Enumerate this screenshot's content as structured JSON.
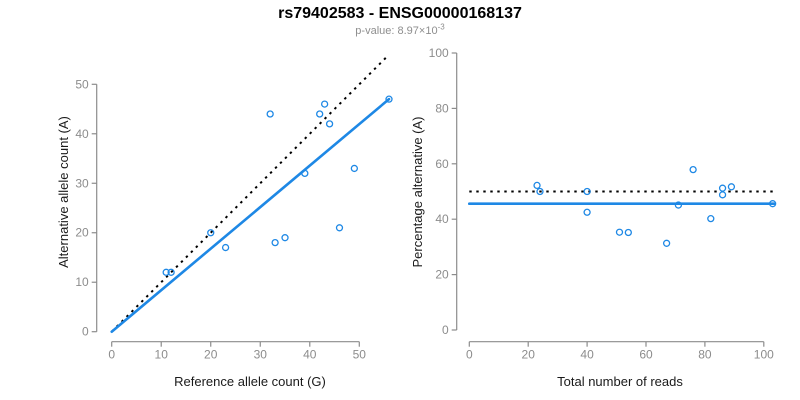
{
  "header": {
    "title": "rs79402583 - ENSG00000168137",
    "subtitle_main": "p-value: 8.97×10",
    "subtitle_exponent": "-3"
  },
  "colors": {
    "accent_blue": "#1E88E5",
    "dotted_black": "#000000",
    "axis_gray": "#8C8C8C",
    "tick_label_gray": "#8C8C8C",
    "axis_title_black": "#1a1a1a",
    "background": "#ffffff"
  },
  "chart_data": [
    {
      "type": "scatter",
      "title": "",
      "xlabel": "Reference allele count (G)",
      "ylabel": "Alternative allele count (A)",
      "xlim": [
        0,
        56
      ],
      "ylim": [
        0,
        56
      ],
      "xticks": [
        0,
        10,
        20,
        30,
        40,
        50
      ],
      "yticks": [
        0,
        10,
        20,
        30,
        40,
        50
      ],
      "grid": false,
      "legend": false,
      "points": [
        [
          11,
          12
        ],
        [
          12,
          12
        ],
        [
          20,
          20
        ],
        [
          23,
          17
        ],
        [
          32,
          44
        ],
        [
          33,
          18
        ],
        [
          35,
          19
        ],
        [
          39,
          32
        ],
        [
          42,
          44
        ],
        [
          43,
          46
        ],
        [
          44,
          42
        ],
        [
          46,
          21
        ],
        [
          49,
          33
        ],
        [
          56,
          47
        ]
      ],
      "lines": [
        {
          "name": "identity-line",
          "style": "dotted",
          "color": "#000000",
          "x1": 0,
          "y1": 0,
          "x2": 56,
          "y2": 56
        },
        {
          "name": "fit-line",
          "style": "solid",
          "color": "#1E88E5",
          "x1": 0,
          "y1": 0,
          "x2": 56,
          "y2": 47
        }
      ]
    },
    {
      "type": "scatter",
      "title": "",
      "xlabel": "Total number of reads",
      "ylabel": "Percentage alternative (A)",
      "xlim": [
        0,
        103.5
      ],
      "ylim": [
        0,
        100
      ],
      "xticks": [
        0,
        20,
        40,
        60,
        80,
        100
      ],
      "yticks": [
        0,
        20,
        40,
        60,
        80,
        100
      ],
      "grid": false,
      "legend": false,
      "points": [
        [
          23,
          52.2
        ],
        [
          24,
          50.0
        ],
        [
          40,
          50.0
        ],
        [
          40,
          42.5
        ],
        [
          51,
          35.3
        ],
        [
          54,
          35.2
        ],
        [
          67,
          31.3
        ],
        [
          71,
          45.1
        ],
        [
          76,
          57.9
        ],
        [
          82,
          40.2
        ],
        [
          86,
          51.2
        ],
        [
          86,
          48.8
        ],
        [
          89,
          51.7
        ],
        [
          103,
          45.6
        ]
      ],
      "lines": [
        {
          "name": "fifty-percent-line",
          "style": "dotted",
          "color": "#000000",
          "x1": 0,
          "y1": 50,
          "x2": 103.5,
          "y2": 50
        },
        {
          "name": "mean-percentage-line",
          "style": "solid",
          "color": "#1E88E5",
          "x1": 0,
          "y1": 45.6,
          "x2": 103.5,
          "y2": 45.6
        }
      ]
    }
  ]
}
